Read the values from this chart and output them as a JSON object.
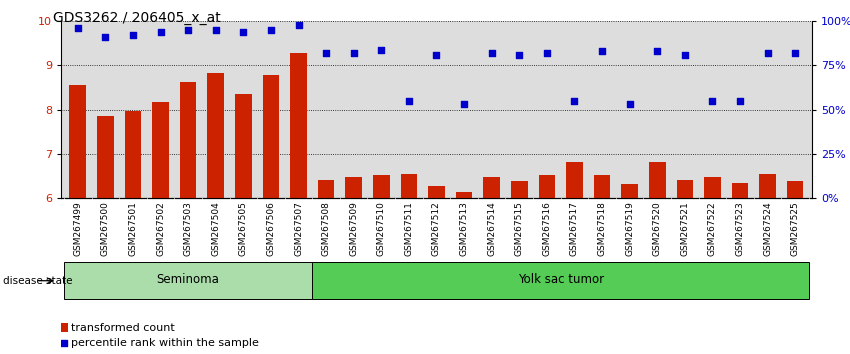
{
  "title": "GDS3262 / 206405_x_at",
  "samples": [
    "GSM267499",
    "GSM267500",
    "GSM267501",
    "GSM267502",
    "GSM267503",
    "GSM267504",
    "GSM267505",
    "GSM267506",
    "GSM267507",
    "GSM267508",
    "GSM267509",
    "GSM267510",
    "GSM267511",
    "GSM267512",
    "GSM267513",
    "GSM267514",
    "GSM267515",
    "GSM267516",
    "GSM267517",
    "GSM267518",
    "GSM267519",
    "GSM267520",
    "GSM267521",
    "GSM267522",
    "GSM267523",
    "GSM267524",
    "GSM267525"
  ],
  "bar_values": [
    8.55,
    7.85,
    7.97,
    8.18,
    8.62,
    8.83,
    8.35,
    8.78,
    9.28,
    6.42,
    6.48,
    6.53,
    6.55,
    6.27,
    6.15,
    6.48,
    6.38,
    6.53,
    6.82,
    6.53,
    6.33,
    6.83,
    6.42,
    6.48,
    6.35,
    6.55,
    6.4
  ],
  "percentile_values": [
    96,
    91,
    92,
    94,
    95,
    95,
    94,
    95,
    98,
    82,
    82,
    84,
    55,
    81,
    53,
    82,
    81,
    82,
    55,
    83,
    53,
    83,
    81,
    55,
    55,
    82,
    82
  ],
  "bar_color": "#cc2200",
  "dot_color": "#0000cc",
  "ylim_left": [
    6,
    10
  ],
  "ylim_right": [
    0,
    100
  ],
  "yticks_left": [
    6,
    7,
    8,
    9,
    10
  ],
  "yticks_right": [
    0,
    25,
    50,
    75,
    100
  ],
  "ytick_labels_right": [
    "0%",
    "25%",
    "50%",
    "75%",
    "100%"
  ],
  "seminoma_count": 9,
  "seminoma_label": "Seminoma",
  "yolk_label": "Yolk sac tumor",
  "disease_state_label": "disease state",
  "legend_bar_label": "transformed count",
  "legend_dot_label": "percentile rank within the sample",
  "group_color_seminoma": "#aaddaa",
  "group_color_yolk": "#55cc55",
  "tick_bg_color": "#cccccc",
  "background_color": "#dddddd"
}
